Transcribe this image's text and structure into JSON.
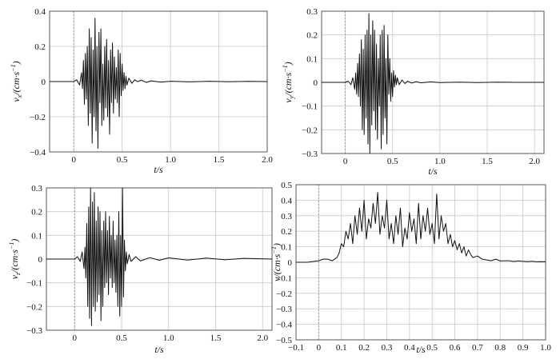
{
  "figure": {
    "background": "#ffffff",
    "frame_color": "#555555",
    "grid_color": "#c8c8c8",
    "trace_color": "#111111"
  },
  "chart_data": [
    {
      "id": "vx",
      "type": "line",
      "title": "",
      "xlabel": "t/s",
      "ylabel": "v_x/(cm·s⁻¹)",
      "ylabel_main": "v",
      "ylabel_sub": "x",
      "ylabel_rest": "/(cm·s",
      "ylabel_sup": "−1",
      "ylabel_close": ")",
      "xlim": [
        -0.25,
        2.0
      ],
      "ylim": [
        -0.4,
        0.4
      ],
      "x_ticks": [
        0,
        0.5,
        1.0,
        1.5,
        2.0
      ],
      "x_tick_labels": [
        "0",
        "0.5",
        "1.0",
        "1.5",
        "2.0"
      ],
      "y_ticks": [
        -0.4,
        -0.2,
        0,
        0.2,
        0.4
      ],
      "y_tick_labels": [
        "−0.4",
        "−0.2",
        "0",
        "0.2",
        "0.4"
      ],
      "grid": true,
      "series": [
        {
          "x": [
            -0.25,
            0.0,
            0.03,
            0.06,
            0.08,
            0.09,
            0.1,
            0.11,
            0.12,
            0.13,
            0.14,
            0.15,
            0.16,
            0.17,
            0.18,
            0.19,
            0.2,
            0.21,
            0.22,
            0.23,
            0.24,
            0.25,
            0.26,
            0.27,
            0.28,
            0.29,
            0.3,
            0.31,
            0.32,
            0.33,
            0.34,
            0.35,
            0.36,
            0.37,
            0.38,
            0.39,
            0.4,
            0.41,
            0.42,
            0.43,
            0.44,
            0.45,
            0.46,
            0.47,
            0.48,
            0.49,
            0.5,
            0.51,
            0.52,
            0.53,
            0.54,
            0.55,
            0.57,
            0.6,
            0.63,
            0.66,
            0.7,
            0.75,
            0.8,
            0.9,
            1.0,
            1.2,
            1.4,
            1.6,
            1.8,
            2.0
          ],
          "y": [
            0,
            0,
            0.01,
            -0.02,
            0.05,
            -0.04,
            0.12,
            -0.13,
            0.16,
            -0.1,
            0.2,
            -0.25,
            0.3,
            -0.18,
            0.25,
            -0.35,
            0.18,
            -0.2,
            0.36,
            -0.28,
            0.2,
            -0.38,
            0.28,
            -0.12,
            0.3,
            -0.25,
            0.1,
            -0.22,
            0.2,
            -0.15,
            0.24,
            -0.2,
            0.12,
            -0.3,
            0.18,
            -0.12,
            0.22,
            -0.18,
            0.14,
            -0.1,
            0.08,
            -0.12,
            0.18,
            -0.2,
            0.16,
            -0.08,
            0.1,
            -0.05,
            0.05,
            -0.04,
            0.03,
            -0.02,
            0.02,
            -0.01,
            0.01,
            0,
            0.008,
            -0.005,
            0.004,
            -0.003,
            0.002,
            -0.002,
            0.002,
            -0.001,
            0.001,
            0
          ]
        }
      ]
    },
    {
      "id": "vy",
      "type": "line",
      "title": "",
      "xlabel": "t/s",
      "ylabel": "v_y/(cm·s⁻¹)",
      "ylabel_main": "v",
      "ylabel_sub": "y",
      "ylabel_rest": "/(cm·s",
      "ylabel_sup": "−1",
      "ylabel_close": ")",
      "xlim": [
        -0.25,
        2.1
      ],
      "ylim": [
        -0.3,
        0.3
      ],
      "x_ticks": [
        0,
        0.5,
        1.0,
        1.5,
        2.0
      ],
      "x_tick_labels": [
        "0",
        "0.5",
        "1.0",
        "1.5",
        "2.0"
      ],
      "y_ticks": [
        -0.3,
        -0.2,
        -0.1,
        0,
        0.1,
        0.2,
        0.3
      ],
      "y_tick_labels": [
        "−0.3",
        "−0.2",
        "−0.1",
        "0",
        "0.1",
        "0.2",
        "0.3"
      ],
      "grid": true,
      "series": [
        {
          "x": [
            -0.25,
            0.0,
            0.03,
            0.06,
            0.08,
            0.1,
            0.11,
            0.12,
            0.13,
            0.14,
            0.15,
            0.16,
            0.17,
            0.18,
            0.19,
            0.2,
            0.21,
            0.22,
            0.23,
            0.24,
            0.25,
            0.26,
            0.27,
            0.28,
            0.29,
            0.3,
            0.31,
            0.32,
            0.33,
            0.34,
            0.35,
            0.36,
            0.37,
            0.38,
            0.39,
            0.4,
            0.41,
            0.42,
            0.43,
            0.44,
            0.45,
            0.46,
            0.47,
            0.48,
            0.49,
            0.5,
            0.51,
            0.52,
            0.53,
            0.54,
            0.55,
            0.57,
            0.6,
            0.63,
            0.66,
            0.7,
            0.75,
            0.8,
            0.9,
            1.0,
            1.2,
            1.4,
            1.6,
            1.8,
            2.1
          ],
          "y": [
            0,
            0,
            0.005,
            -0.01,
            0.02,
            -0.03,
            0.04,
            -0.05,
            0.08,
            -0.06,
            0.12,
            -0.1,
            0.18,
            -0.2,
            0.14,
            -0.22,
            0.2,
            -0.15,
            0.22,
            -0.26,
            0.29,
            -0.3,
            0.2,
            -0.18,
            0.26,
            -0.12,
            0.22,
            -0.2,
            0.16,
            -0.24,
            0.1,
            -0.1,
            0.2,
            -0.28,
            0.22,
            -0.22,
            0.24,
            -0.15,
            0.1,
            -0.26,
            0.2,
            -0.05,
            0.1,
            -0.08,
            0.04,
            -0.06,
            0.05,
            -0.02,
            0.03,
            -0.01,
            0.02,
            -0.01,
            0.01,
            -0.005,
            0.005,
            -0.003,
            0.003,
            -0.002,
            0.002,
            -0.001,
            0.001,
            -0.001,
            0.001,
            0,
            0
          ]
        }
      ]
    },
    {
      "id": "vz",
      "type": "line",
      "title": "",
      "xlabel": "t/s",
      "ylabel": "v_z/(cm·s⁻¹)",
      "ylabel_main": "v",
      "ylabel_sub": "z",
      "ylabel_rest": "/(cm·s",
      "ylabel_sup": "−1",
      "ylabel_close": ")",
      "xlim": [
        -0.3,
        2.1
      ],
      "ylim": [
        -0.3,
        0.3
      ],
      "x_ticks": [
        0,
        0.5,
        1.0,
        1.5,
        2.0
      ],
      "x_tick_labels": [
        "0",
        "0.5",
        "1.0",
        "1.5",
        "2.0"
      ],
      "y_ticks": [
        -0.3,
        -0.2,
        -0.1,
        0,
        0.1,
        0.2,
        0.3
      ],
      "y_tick_labels": [
        "−0.3",
        "−0.2",
        "−0.1",
        "0",
        "0.1",
        "0.2",
        "0.3"
      ],
      "grid": true,
      "series": [
        {
          "x": [
            -0.3,
            0.0,
            0.03,
            0.06,
            0.08,
            0.1,
            0.11,
            0.12,
            0.13,
            0.14,
            0.15,
            0.16,
            0.17,
            0.18,
            0.19,
            0.2,
            0.21,
            0.22,
            0.23,
            0.24,
            0.25,
            0.26,
            0.27,
            0.28,
            0.29,
            0.3,
            0.31,
            0.32,
            0.33,
            0.34,
            0.35,
            0.36,
            0.37,
            0.38,
            0.39,
            0.4,
            0.41,
            0.42,
            0.43,
            0.44,
            0.45,
            0.46,
            0.47,
            0.48,
            0.49,
            0.5,
            0.51,
            0.52,
            0.53,
            0.54,
            0.55,
            0.56,
            0.58,
            0.6,
            0.65,
            0.7,
            0.8,
            0.9,
            1.0,
            1.2,
            1.4,
            1.6,
            1.8,
            2.1
          ],
          "y": [
            0,
            0,
            0.01,
            -0.01,
            0.03,
            -0.04,
            0.05,
            -0.08,
            0.15,
            -0.2,
            0.22,
            -0.25,
            0.3,
            -0.28,
            0.24,
            -0.2,
            0.28,
            -0.22,
            0.16,
            -0.18,
            0.22,
            -0.15,
            0.2,
            -0.26,
            0.12,
            -0.2,
            0.16,
            -0.12,
            0.2,
            -0.1,
            0.12,
            -0.15,
            0.18,
            -0.08,
            0.1,
            -0.12,
            0.16,
            -0.1,
            0.08,
            -0.14,
            0.1,
            -0.2,
            0.2,
            -0.24,
            0.1,
            -0.2,
            0.3,
            -0.16,
            0.08,
            -0.05,
            0.03,
            -0.02,
            0.02,
            -0.01,
            0.01,
            -0.008,
            0.006,
            -0.005,
            0.005,
            -0.004,
            0.004,
            -0.003,
            0.003,
            0
          ]
        }
      ]
    },
    {
      "id": "v",
      "type": "line",
      "title": "",
      "xlabel": "t/s",
      "ylabel": "v/(cm·s⁻¹)",
      "ylabel_main": "v",
      "ylabel_sub": "",
      "ylabel_rest": "/(cm·s",
      "ylabel_sup": "−1",
      "ylabel_close": ")",
      "xlim": [
        -0.1,
        1.0
      ],
      "ylim": [
        -0.5,
        0.5
      ],
      "x_ticks": [
        -0.1,
        0,
        0.1,
        0.2,
        0.3,
        0.4,
        0.5,
        0.6,
        0.7,
        0.8,
        0.9,
        1.0
      ],
      "x_tick_labels": [
        "−0.1",
        "0",
        "0.1",
        "0.2",
        "0.3",
        "0.4",
        "0.5",
        "0.6",
        "0.7",
        "0.8",
        "0.9",
        "1.0"
      ],
      "y_ticks": [
        -0.5,
        -0.4,
        -0.3,
        -0.2,
        -0.1,
        0,
        0.1,
        0.2,
        0.3,
        0.4,
        0.5
      ],
      "y_tick_labels": [
        "−0.5",
        "−0.4",
        "−0.3",
        "−0.2",
        "−0.1",
        "0",
        "0.1",
        "0.2",
        "0.3",
        "0.4",
        "0.5"
      ],
      "grid": true,
      "series": [
        {
          "x": [
            -0.1,
            -0.05,
            0.0,
            0.02,
            0.04,
            0.06,
            0.08,
            0.09,
            0.1,
            0.11,
            0.12,
            0.13,
            0.14,
            0.15,
            0.16,
            0.17,
            0.18,
            0.19,
            0.2,
            0.21,
            0.22,
            0.23,
            0.24,
            0.25,
            0.26,
            0.27,
            0.28,
            0.29,
            0.3,
            0.31,
            0.32,
            0.33,
            0.34,
            0.35,
            0.36,
            0.37,
            0.38,
            0.39,
            0.4,
            0.41,
            0.42,
            0.43,
            0.44,
            0.45,
            0.46,
            0.47,
            0.48,
            0.49,
            0.5,
            0.51,
            0.52,
            0.53,
            0.54,
            0.55,
            0.56,
            0.57,
            0.58,
            0.59,
            0.6,
            0.61,
            0.62,
            0.63,
            0.64,
            0.65,
            0.66,
            0.67,
            0.68,
            0.7,
            0.72,
            0.74,
            0.76,
            0.78,
            0.8,
            0.82,
            0.84,
            0.86,
            0.88,
            0.9,
            0.92,
            0.94,
            0.96,
            0.98,
            1.0
          ],
          "y": [
            0,
            0,
            0.01,
            0.02,
            0.02,
            0.01,
            0.03,
            0.06,
            0.12,
            0.1,
            0.2,
            0.15,
            0.25,
            0.12,
            0.3,
            0.18,
            0.35,
            0.2,
            0.4,
            0.15,
            0.28,
            0.22,
            0.38,
            0.25,
            0.45,
            0.18,
            0.3,
            0.22,
            0.4,
            0.15,
            0.25,
            0.12,
            0.3,
            0.18,
            0.35,
            0.1,
            0.22,
            0.15,
            0.32,
            0.2,
            0.28,
            0.12,
            0.38,
            0.15,
            0.3,
            0.2,
            0.35,
            0.18,
            0.25,
            0.12,
            0.44,
            0.15,
            0.3,
            0.2,
            0.25,
            0.12,
            0.18,
            0.1,
            0.14,
            0.08,
            0.12,
            0.06,
            0.1,
            0.04,
            0.08,
            0.05,
            0.03,
            0.04,
            0.02,
            0.015,
            0.01,
            0.02,
            0.008,
            0.01,
            0.01,
            0.005,
            0.008,
            0.006,
            0.004,
            0.006,
            0.003,
            0.004,
            0.003
          ]
        }
      ]
    }
  ]
}
